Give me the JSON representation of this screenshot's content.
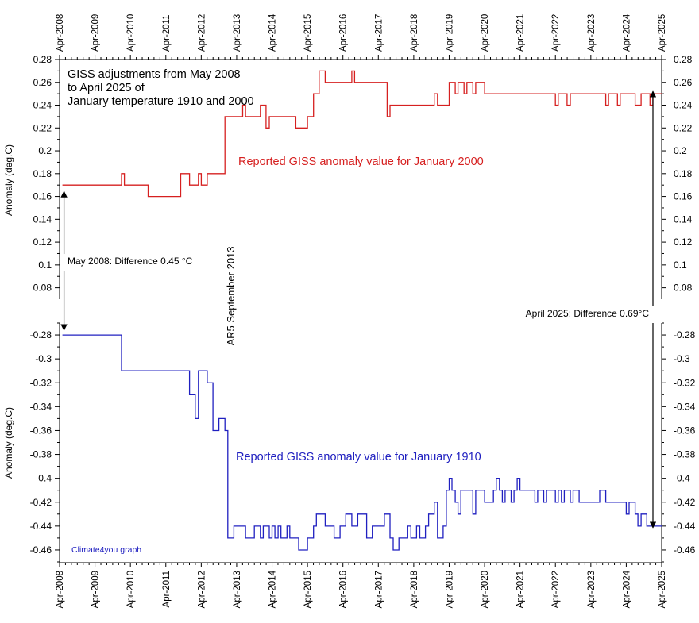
{
  "chart_data": {
    "type": "line",
    "title_lines": [
      "GISS adjustments from May 2008",
      "to April 2025 of",
      "January temperature 1910 and 2000"
    ],
    "x_tick_labels": [
      "Apr-2008",
      "Apr-2009",
      "Apr-2010",
      "Apr-2011",
      "Apr-2012",
      "Apr-2013",
      "Apr-2014",
      "Apr-2015",
      "Apr-2016",
      "Apr-2017",
      "Apr-2018",
      "Apr-2019",
      "Apr-2020",
      "Apr-2021",
      "Apr-2022",
      "Apr-2023",
      "Apr-2024",
      "Apr-2025"
    ],
    "xlim": [
      2008.25,
      2025.25
    ],
    "step_style": "step-after",
    "panels": [
      {
        "ylabel": "Anomaly (deg.C)",
        "ylim": [
          0.07,
          0.28
        ],
        "ytick_labels": [
          "0.28",
          "0.26",
          "0.24",
          "0.22",
          "0.2",
          "0.18",
          "0.16",
          "0.14",
          "0.12",
          "0.1",
          "0.08"
        ],
        "series": [
          {
            "name": "Reported GISS anomaly value for January 2000",
            "color": "#d62020",
            "x": [
              2008.33,
              2010.0,
              2010.08,
              2010.75,
              2011.67,
              2011.92,
              2012.17,
              2012.25,
              2012.42,
              2012.92,
              2013.42,
              2013.5,
              2013.92,
              2014.08,
              2014.17,
              2014.75,
              2014.92,
              2015.25,
              2015.42,
              2015.58,
              2015.75,
              2016.5,
              2016.58,
              2017.5,
              2017.58,
              2018.83,
              2018.92,
              2019.25,
              2019.42,
              2019.5,
              2019.67,
              2019.75,
              2019.92,
              2020.0,
              2020.17,
              2020.25,
              2022.25,
              2022.33,
              2022.58,
              2022.67,
              2023.67,
              2023.75,
              2024.0,
              2024.08,
              2024.5,
              2024.67,
              2024.75,
              2024.92,
              2025.0,
              2025.25
            ],
            "y": [
              0.17,
              0.18,
              0.17,
              0.16,
              0.18,
              0.17,
              0.18,
              0.17,
              0.18,
              0.23,
              0.24,
              0.23,
              0.24,
              0.22,
              0.23,
              0.23,
              0.22,
              0.23,
              0.25,
              0.27,
              0.26,
              0.27,
              0.26,
              0.23,
              0.24,
              0.25,
              0.24,
              0.26,
              0.25,
              0.26,
              0.25,
              0.26,
              0.25,
              0.26,
              0.26,
              0.25,
              0.24,
              0.25,
              0.24,
              0.25,
              0.24,
              0.25,
              0.24,
              0.25,
              0.24,
              0.25,
              0.25,
              0.24,
              0.25,
              0.25
            ]
          }
        ]
      },
      {
        "ylabel": "Anomaly (deg.C)",
        "ylim": [
          -0.47,
          -0.27
        ],
        "ytick_labels": [
          "-0.28",
          "-0.3",
          "-0.32",
          "-0.34",
          "-0.36",
          "-0.38",
          "-0.4",
          "-0.42",
          "-0.44",
          "-0.46"
        ],
        "series": [
          {
            "name": "Reported GISS anomaly value for January 1910",
            "color": "#2020c0",
            "x": [
              2008.33,
              2010.0,
              2011.92,
              2012.08,
              2012.17,
              2012.42,
              2012.58,
              2012.75,
              2012.92,
              2013.0,
              2013.17,
              2013.5,
              2013.75,
              2013.92,
              2014.0,
              2014.17,
              2014.25,
              2014.33,
              2014.42,
              2014.5,
              2014.67,
              2014.75,
              2015.0,
              2015.25,
              2015.42,
              2015.5,
              2015.75,
              2016.0,
              2016.17,
              2016.33,
              2016.5,
              2016.67,
              2016.92,
              2017.08,
              2017.42,
              2017.58,
              2017.67,
              2017.83,
              2018.08,
              2018.17,
              2018.33,
              2018.42,
              2018.58,
              2018.67,
              2018.83,
              2018.92,
              2019.08,
              2019.17,
              2019.25,
              2019.33,
              2019.42,
              2019.5,
              2019.58,
              2019.92,
              2020.0,
              2020.17,
              2020.25,
              2020.5,
              2020.58,
              2020.67,
              2020.75,
              2020.83,
              2020.92,
              2021.0,
              2021.08,
              2021.17,
              2021.25,
              2021.67,
              2021.75,
              2021.92,
              2022.0,
              2022.25,
              2022.33,
              2022.42,
              2022.5,
              2022.67,
              2022.75,
              2022.92,
              2023.0,
              2023.5,
              2023.67,
              2023.75,
              2024.25,
              2024.33,
              2024.5,
              2024.58,
              2024.67,
              2024.83,
              2025.0,
              2025.25
            ],
            "y": [
              -0.28,
              -0.31,
              -0.33,
              -0.35,
              -0.31,
              -0.32,
              -0.36,
              -0.35,
              -0.36,
              -0.45,
              -0.44,
              -0.45,
              -0.44,
              -0.45,
              -0.44,
              -0.45,
              -0.44,
              -0.45,
              -0.44,
              -0.45,
              -0.44,
              -0.45,
              -0.46,
              -0.45,
              -0.44,
              -0.43,
              -0.44,
              -0.45,
              -0.44,
              -0.43,
              -0.44,
              -0.43,
              -0.45,
              -0.44,
              -0.43,
              -0.45,
              -0.46,
              -0.45,
              -0.44,
              -0.45,
              -0.44,
              -0.45,
              -0.44,
              -0.43,
              -0.42,
              -0.45,
              -0.44,
              -0.41,
              -0.4,
              -0.41,
              -0.42,
              -0.43,
              -0.41,
              -0.43,
              -0.41,
              -0.41,
              -0.42,
              -0.41,
              -0.4,
              -0.41,
              -0.42,
              -0.41,
              -0.41,
              -0.42,
              -0.41,
              -0.4,
              -0.41,
              -0.42,
              -0.41,
              -0.42,
              -0.41,
              -0.42,
              -0.41,
              -0.42,
              -0.41,
              -0.42,
              -0.41,
              -0.42,
              -0.42,
              -0.41,
              -0.42,
              -0.42,
              -0.43,
              -0.42,
              -0.43,
              -0.44,
              -0.43,
              -0.44,
              -0.44,
              -0.44
            ]
          }
        ]
      }
    ],
    "annotations": {
      "may2008_diff": "May 2008: Difference 0.45 °C",
      "apr2025_diff": "April 2025: Difference 0.69°C",
      "ar5": "AR5 September 2013",
      "credit": "Climate4you graph"
    }
  }
}
